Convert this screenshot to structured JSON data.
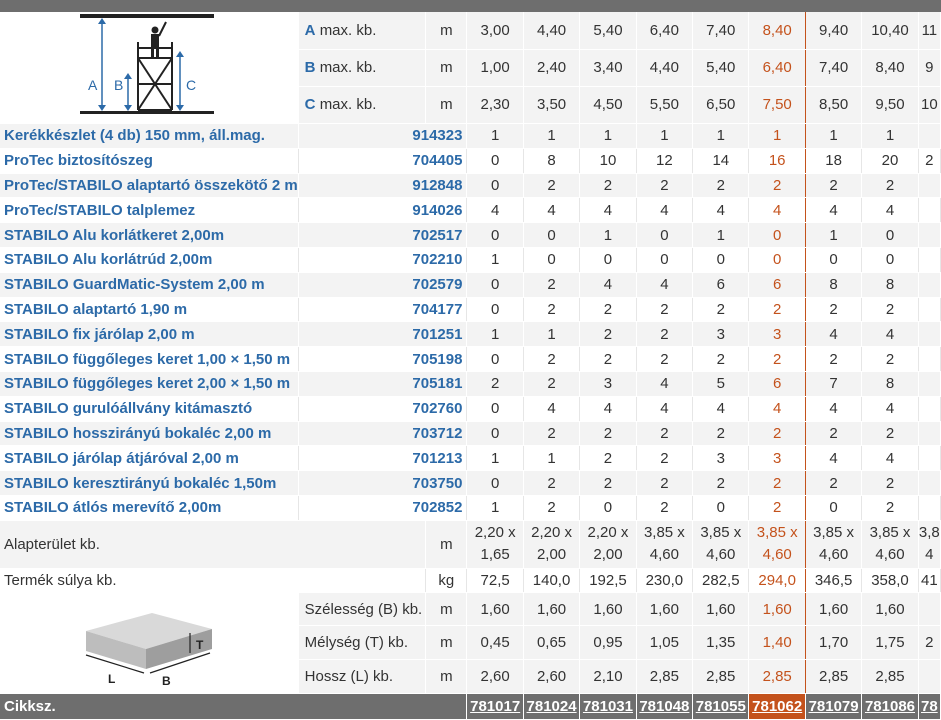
{
  "header_rows": [
    {
      "letter": "A",
      "label": "max. kb.",
      "unit": "m",
      "values": [
        "3,00",
        "4,40",
        "5,40",
        "6,40",
        "7,40",
        "8,40",
        "9,40",
        "10,40",
        "11"
      ]
    },
    {
      "letter": "B",
      "label": "max. kb.",
      "unit": "m",
      "values": [
        "1,00",
        "2,40",
        "3,40",
        "4,40",
        "5,40",
        "6,40",
        "7,40",
        "8,40",
        "9"
      ]
    },
    {
      "letter": "C",
      "label": "max. kb.",
      "unit": "m",
      "values": [
        "2,30",
        "3,50",
        "4,50",
        "5,50",
        "6,50",
        "7,50",
        "8,50",
        "9,50",
        "10"
      ]
    }
  ],
  "diagram": {
    "label_a": "A",
    "label_b": "B",
    "label_c": "C"
  },
  "items": [
    {
      "name": "Kerékkészlet (4 db) 150 mm, áll.mag.",
      "code": "914323",
      "values": [
        "1",
        "1",
        "1",
        "1",
        "1",
        "1",
        "1",
        "1",
        ""
      ]
    },
    {
      "name": "ProTec biztosítószeg",
      "code": "704405",
      "values": [
        "0",
        "8",
        "10",
        "12",
        "14",
        "16",
        "18",
        "20",
        "2"
      ]
    },
    {
      "name": "ProTec/STABILO alaptartó összekötő 2 m",
      "code": "912848",
      "values": [
        "0",
        "2",
        "2",
        "2",
        "2",
        "2",
        "2",
        "2",
        ""
      ]
    },
    {
      "name": "ProTec/STABILO talplemez",
      "code": "914026",
      "values": [
        "4",
        "4",
        "4",
        "4",
        "4",
        "4",
        "4",
        "4",
        ""
      ]
    },
    {
      "name": "STABILO Alu korlátkeret 2,00m",
      "code": "702517",
      "values": [
        "0",
        "0",
        "1",
        "0",
        "1",
        "0",
        "1",
        "0",
        ""
      ]
    },
    {
      "name": "STABILO Alu korlátrúd 2,00m",
      "code": "702210",
      "values": [
        "1",
        "0",
        "0",
        "0",
        "0",
        "0",
        "0",
        "0",
        ""
      ]
    },
    {
      "name": "STABILO GuardMatic-System 2,00 m",
      "code": "702579",
      "values": [
        "0",
        "2",
        "4",
        "4",
        "6",
        "6",
        "8",
        "8",
        ""
      ]
    },
    {
      "name": "STABILO alaptartó 1,90 m",
      "code": "704177",
      "values": [
        "0",
        "2",
        "2",
        "2",
        "2",
        "2",
        "2",
        "2",
        ""
      ]
    },
    {
      "name": "STABILO fix járólap 2,00 m",
      "code": "701251",
      "values": [
        "1",
        "1",
        "2",
        "2",
        "3",
        "3",
        "4",
        "4",
        ""
      ]
    },
    {
      "name": "STABILO függőleges keret 1,00 × 1,50 m",
      "code": "705198",
      "values": [
        "0",
        "2",
        "2",
        "2",
        "2",
        "2",
        "2",
        "2",
        ""
      ]
    },
    {
      "name": "STABILO függőleges keret 2,00 × 1,50 m",
      "code": "705181",
      "values": [
        "2",
        "2",
        "3",
        "4",
        "5",
        "6",
        "7",
        "8",
        ""
      ]
    },
    {
      "name": "STABILO gurulóállvány kitámasztó",
      "code": "702760",
      "values": [
        "0",
        "4",
        "4",
        "4",
        "4",
        "4",
        "4",
        "4",
        ""
      ]
    },
    {
      "name": "STABILO hosszirányú bokaléc 2,00 m",
      "code": "703712",
      "values": [
        "0",
        "2",
        "2",
        "2",
        "2",
        "2",
        "2",
        "2",
        ""
      ]
    },
    {
      "name": "STABILO járólap átjáróval 2,00 m",
      "code": "701213",
      "values": [
        "1",
        "1",
        "2",
        "2",
        "3",
        "3",
        "4",
        "4",
        ""
      ]
    },
    {
      "name": "STABILO keresztirányú bokaléc 1,50m",
      "code": "703750",
      "values": [
        "0",
        "2",
        "2",
        "2",
        "2",
        "2",
        "2",
        "2",
        ""
      ]
    },
    {
      "name": "STABILO átlós merevítő 2,00m",
      "code": "702852",
      "values": [
        "1",
        "2",
        "0",
        "2",
        "0",
        "2",
        "0",
        "2",
        ""
      ]
    }
  ],
  "area": {
    "label": "Alapterület kb.",
    "unit": "m",
    "top": [
      "2,20 x",
      "2,20 x",
      "2,20 x",
      "3,85 x",
      "3,85 x",
      "3,85 x",
      "3,85 x",
      "3,85 x",
      "3,8"
    ],
    "bottom": [
      "1,65",
      "2,00",
      "2,00",
      "4,60",
      "4,60",
      "4,60",
      "4,60",
      "4,60",
      "4"
    ]
  },
  "weight": {
    "label": "Termék súlya kb.",
    "unit": "kg",
    "values": [
      "72,5",
      "140,0",
      "192,5",
      "230,0",
      "282,5",
      "294,0",
      "346,5",
      "358,0",
      "41"
    ]
  },
  "package": {
    "labels": {
      "t": "T",
      "l": "L",
      "b": "B"
    },
    "rows": [
      {
        "label": "Szélesség (B) kb.",
        "unit": "m",
        "values": [
          "1,60",
          "1,60",
          "1,60",
          "1,60",
          "1,60",
          "1,60",
          "1,60",
          "1,60",
          ""
        ]
      },
      {
        "label": "Mélység (T) kb.",
        "unit": "m",
        "values": [
          "0,45",
          "0,65",
          "0,95",
          "1,05",
          "1,35",
          "1,40",
          "1,70",
          "1,75",
          "2"
        ]
      },
      {
        "label": "Hossz (L) kb.",
        "unit": "m",
        "values": [
          "2,60",
          "2,60",
          "2,10",
          "2,85",
          "2,85",
          "2,85",
          "2,85",
          "2,85",
          ""
        ]
      }
    ]
  },
  "footer": {
    "label": "Cikksz.",
    "codes": [
      "781017",
      "781024",
      "781031",
      "781048",
      "781055",
      "781062",
      "781079",
      "781086",
      "78"
    ]
  },
  "highlight_color": "#c4521c",
  "link_color": "#2c6aa8"
}
